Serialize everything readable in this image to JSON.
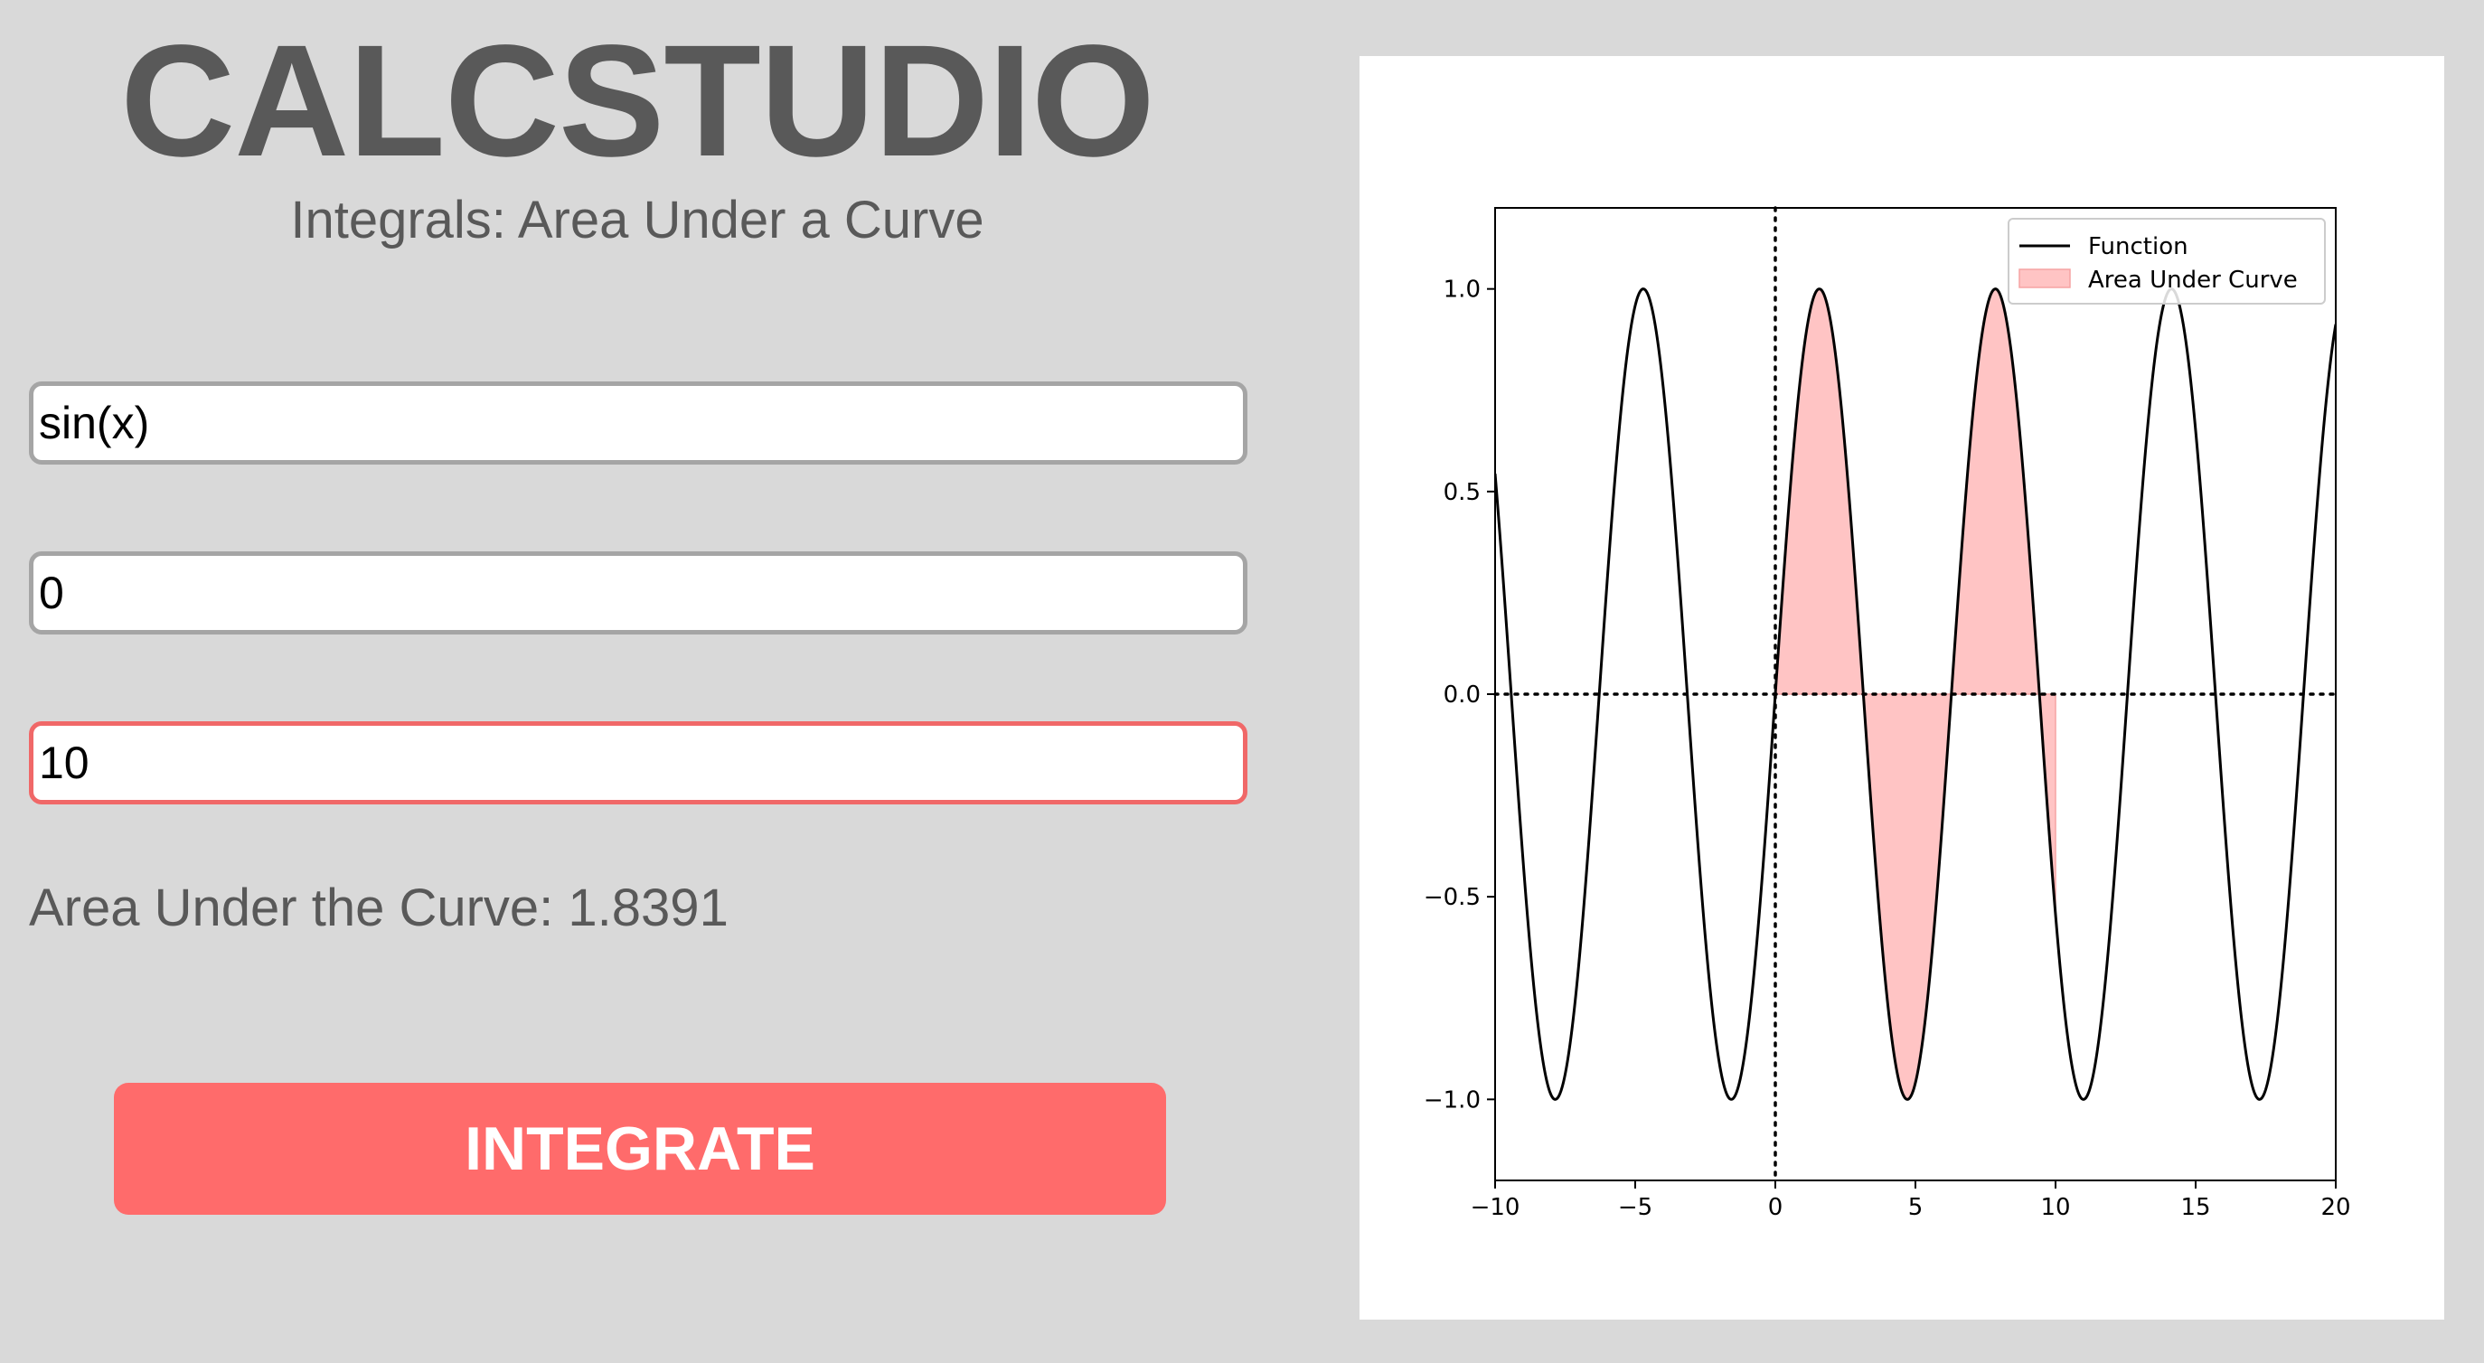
{
  "app": {
    "title": "CALCSTUDIO",
    "subtitle": "Integrals: Area Under a Curve"
  },
  "inputs": {
    "function_value": "sin(x)",
    "lower_bound_value": "0",
    "upper_bound_value": "10"
  },
  "result": {
    "label": "Area Under the Curve:",
    "value": "1.8391"
  },
  "actions": {
    "integrate_label": "INTEGRATE"
  },
  "colors": {
    "background": "#d9d9d9",
    "text": "#595959",
    "accent": "#ff6b6b",
    "input_border": "#a5a5a5",
    "focused_border": "#f06868",
    "fill": "#ffc4c4"
  },
  "chart_data": {
    "type": "line",
    "function": "sin(x)",
    "xlim": [
      -10,
      20
    ],
    "ylim": [
      -1.2,
      1.2
    ],
    "xticks": [
      -10,
      -5,
      0,
      5,
      10,
      15,
      20
    ],
    "yticks": [
      -1.0,
      -0.5,
      0.0,
      0.5,
      1.0
    ],
    "xtick_labels": [
      "−10",
      "−5",
      "0",
      "5",
      "10",
      "15",
      "20"
    ],
    "ytick_labels": [
      "−1.0",
      "−0.5",
      "0.0",
      "0.5",
      "1.0"
    ],
    "fill_between": [
      0,
      10
    ],
    "reference_lines": {
      "x": 0,
      "y": 0
    },
    "legend": {
      "position": "top-right",
      "entries": [
        "Function",
        "Area Under Curve"
      ]
    },
    "grid": false,
    "series": [
      {
        "name": "Function",
        "color": "#000000"
      }
    ],
    "fill_color": "#ffc4c4",
    "fill_edge_color": "#f5a3a3"
  }
}
